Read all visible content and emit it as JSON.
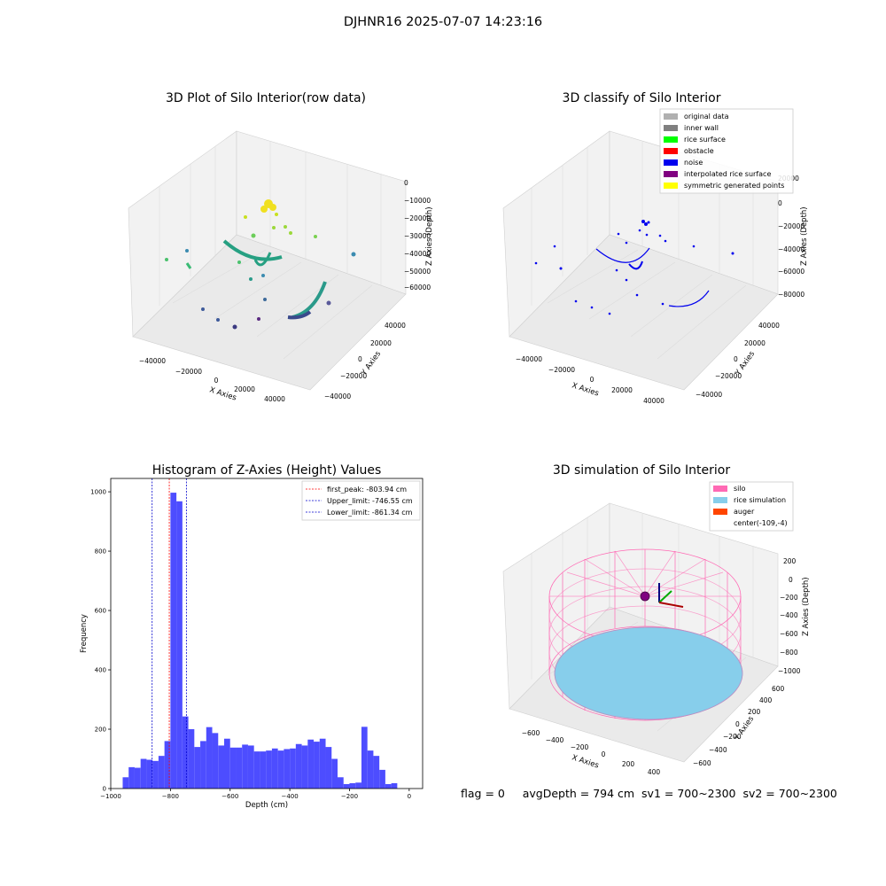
{
  "figure_title": "DJHNR16 2025-07-07 14:23:16",
  "footer": {
    "flag": "flag = 0",
    "avg_depth": "avgDepth = 794 cm",
    "sv1": "sv1 = 700~2300",
    "sv2": "sv2 = 700~2300"
  },
  "colors": {
    "hist_bar": "#4d4dff",
    "first_peak_line": "#ff0000",
    "limit_lines": "#0000cc",
    "silo_wire": "#ff69b4",
    "rice_sim": "#87ceeb",
    "auger": "#ff4500",
    "noise_blue": "#0000ee"
  },
  "chart_data": [
    {
      "id": "raw_3d",
      "type": "scatter",
      "title": "3D Plot of Silo Interior(row data)",
      "xlabel": "X Axies",
      "ylabel": "Y Axies",
      "zlabel": "Z Axies (Depth)",
      "x_ticks": [
        "−40000",
        "−20000",
        "0",
        "20000",
        "40000"
      ],
      "y_ticks": [
        "−40000",
        "−20000",
        "0",
        "20000",
        "40000"
      ],
      "z_ticks": [
        "0",
        "−10000",
        "−20000",
        "−30000",
        "−40000",
        "−50000",
        "−60000"
      ],
      "colormap": "viridis by depth"
    },
    {
      "id": "classify_3d",
      "type": "scatter",
      "title": "3D classify of Silo Interior",
      "xlabel": "X Axies",
      "ylabel": "Y Axies",
      "zlabel": "Z Axies (Depth)",
      "x_ticks": [
        "−40000",
        "−20000",
        "0",
        "20000",
        "40000"
      ],
      "y_ticks": [
        "−40000",
        "−20000",
        "0",
        "20000",
        "40000"
      ],
      "z_ticks": [
        "20000",
        "0",
        "−20000",
        "−40000",
        "−60000",
        "−80000"
      ],
      "legend": [
        {
          "label": "original data",
          "color": "#b0b0b0"
        },
        {
          "label": "inner wall",
          "color": "#808080"
        },
        {
          "label": "rice surface",
          "color": "#00ff00"
        },
        {
          "label": "obstacle",
          "color": "#ff0000"
        },
        {
          "label": "noise",
          "color": "#0000ee"
        },
        {
          "label": "interpolated rice surface",
          "color": "#800080"
        },
        {
          "label": "symmetric generated points",
          "color": "#ffff00"
        }
      ]
    },
    {
      "id": "histogram",
      "type": "bar",
      "title": "Histogram of Z-Axies (Height) Values",
      "xlabel": "Depth (cm)",
      "ylabel": "Frequency",
      "xlim": [
        -1000,
        45
      ],
      "ylim": [
        0,
        1045
      ],
      "x_ticks": [
        -1000,
        -800,
        -600,
        -400,
        -200,
        0
      ],
      "x_tick_labels": [
        "−1000",
        "−800",
        "−600",
        "−400",
        "−200",
        "0"
      ],
      "y_ticks": [
        0,
        200,
        400,
        600,
        800,
        1000
      ],
      "bin_start": -960,
      "bin_width": 20,
      "values": [
        38,
        72,
        70,
        100,
        97,
        93,
        110,
        160,
        997,
        968,
        243,
        200,
        140,
        160,
        207,
        187,
        145,
        168,
        138,
        138,
        148,
        145,
        125,
        125,
        128,
        135,
        128,
        133,
        135,
        150,
        145,
        165,
        158,
        168,
        140,
        100,
        38,
        15,
        18,
        20,
        208,
        128,
        110,
        63,
        15,
        18
      ],
      "vlines": [
        {
          "label": "first_peak: -803.94 cm",
          "x": -803.94,
          "color": "#ff0000"
        },
        {
          "label": "Upper_limit: -746.55 cm",
          "x": -746.55,
          "color": "#0000cc"
        },
        {
          "label": "Lower_limit: -861.34 cm",
          "x": -861.34,
          "color": "#0000cc"
        }
      ]
    },
    {
      "id": "simulation_3d",
      "type": "area",
      "title": "3D simulation of Silo Interior",
      "xlabel": "X Axies",
      "ylabel": "Y Axies",
      "zlabel": "Z Axies (Depth)",
      "x_ticks": [
        "−600",
        "−400",
        "−200",
        "0",
        "200",
        "400"
      ],
      "y_ticks": [
        "−600",
        "−400",
        "−200",
        "0",
        "200",
        "400",
        "600"
      ],
      "z_ticks": [
        "200",
        "0",
        "−200",
        "−400",
        "−600",
        "−800",
        "−1000"
      ],
      "legend": [
        {
          "label": "silo",
          "color": "#ff69b4"
        },
        {
          "label": "rice simulation",
          "color": "#87ceeb"
        },
        {
          "label": "auger",
          "color": "#ff4500"
        },
        {
          "label": "center(-109,-4)",
          "color": ""
        }
      ]
    }
  ]
}
